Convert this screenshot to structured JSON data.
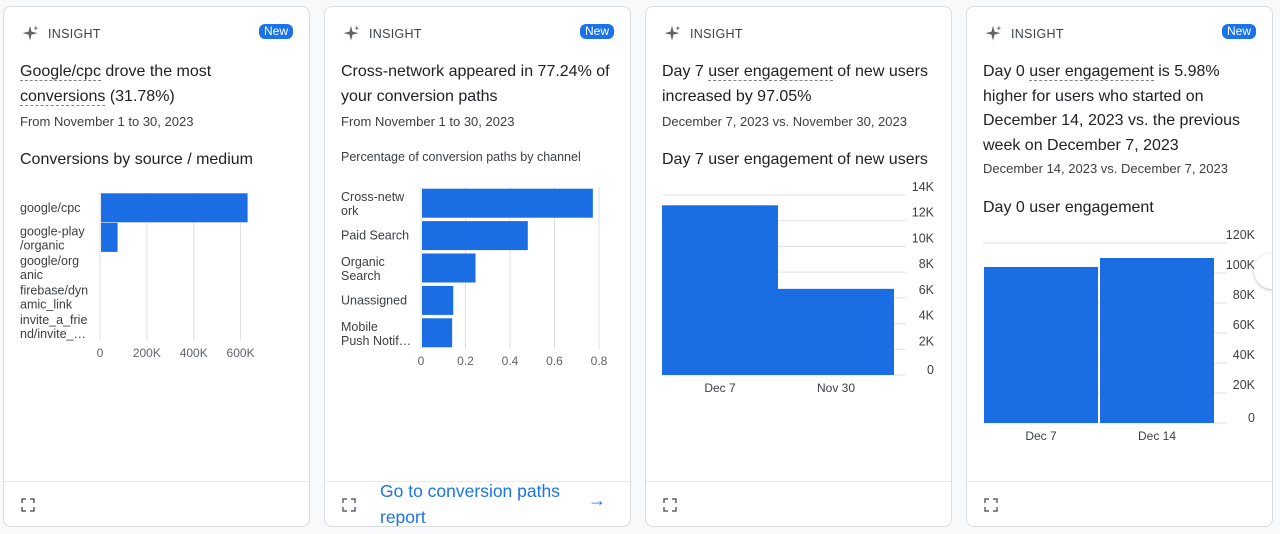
{
  "colors": {
    "accent": "#1a73e8",
    "bar": "#1a6de3",
    "border": "#dadce0"
  },
  "cards": [
    {
      "eyebrow": "INSIGHT",
      "badge": "New",
      "headline": {
        "part1": "Google/cpc",
        "part2": " drove the most ",
        "part3": "conversions",
        "part4": " (31.78%)"
      },
      "date": "From November 1 to 30, 2023",
      "chart_title": "Conversions by source / medium"
    },
    {
      "eyebrow": "INSIGHT",
      "badge": "New",
      "headline": "Cross-network appeared in 77.24% of your conversion paths",
      "date": "From November 1 to 30, 2023",
      "chart_subtitle": "Percentage of conversion paths by channel",
      "footer_link": "Go to conversion paths report"
    },
    {
      "eyebrow": "INSIGHT",
      "headline": {
        "part1": "Day 7 ",
        "part2": "user engagement",
        "part3": " of new users increased by 97.05%"
      },
      "date": "December 7, 2023 vs. November 30, 2023",
      "chart_title": "Day 7 user engagement of new users"
    },
    {
      "eyebrow": "INSIGHT",
      "badge": "New",
      "headline": {
        "part1": "Day 0 ",
        "part2": "user engagement",
        "part3": " is 5.98% higher for users who started on December 14, 2023 vs. the previous week on December 7, 2023"
      },
      "date": "December 14, 2023 vs. December 7, 2023",
      "chart_title": "Day 0 user engagement"
    }
  ],
  "chart_data": [
    {
      "type": "bar",
      "orientation": "horizontal",
      "title": "Conversions by source / medium",
      "categories": [
        [
          "google/cpc"
        ],
        [
          "google-play",
          "/organic"
        ],
        [
          "google/org",
          "anic"
        ],
        [
          "firebase/dyn",
          "amic_link"
        ],
        [
          "invite_a_frie",
          "nd/invite_…"
        ]
      ],
      "values": [
        630000,
        75000,
        0,
        0,
        0
      ],
      "xlim": [
        0,
        700000
      ],
      "ticks": [
        0,
        200000,
        400000,
        600000
      ],
      "tick_labels": [
        "0",
        "200K",
        "400K",
        "600K"
      ]
    },
    {
      "type": "bar",
      "orientation": "horizontal",
      "title": "Percentage of conversion paths by channel",
      "categories": [
        [
          "Cross-netw",
          "ork"
        ],
        [
          "Paid Search"
        ],
        [
          "Organic",
          "Search"
        ],
        [
          "Unassigned"
        ],
        [
          "Mobile",
          "Push Notif…"
        ]
      ],
      "values": [
        0.7724,
        0.48,
        0.245,
        0.145,
        0.14
      ],
      "xlim": [
        0,
        0.8
      ],
      "ticks": [
        0,
        0.2,
        0.4,
        0.6,
        0.8
      ],
      "tick_labels": [
        "0",
        "0.2",
        "0.4",
        "0.6",
        "0.8"
      ]
    },
    {
      "type": "bar",
      "title": "Day 7 user engagement of new users",
      "categories": [
        "Dec 7",
        "Nov 30"
      ],
      "values": [
        13200,
        6700
      ],
      "ylim": [
        0,
        14000
      ],
      "ticks": [
        0,
        2000,
        4000,
        6000,
        8000,
        10000,
        12000,
        14000
      ],
      "tick_labels": [
        "0",
        "2K",
        "4K",
        "6K",
        "8K",
        "10K",
        "12K",
        "14K"
      ]
    },
    {
      "type": "bar",
      "title": "Day 0 user engagement",
      "categories": [
        "Dec 7",
        "Dec 14"
      ],
      "values": [
        104000,
        110000
      ],
      "ylim": [
        0,
        120000
      ],
      "ticks": [
        0,
        20000,
        40000,
        60000,
        80000,
        100000,
        120000
      ],
      "tick_labels": [
        "0",
        "20K",
        "40K",
        "60K",
        "80K",
        "100K",
        "120K"
      ]
    }
  ]
}
